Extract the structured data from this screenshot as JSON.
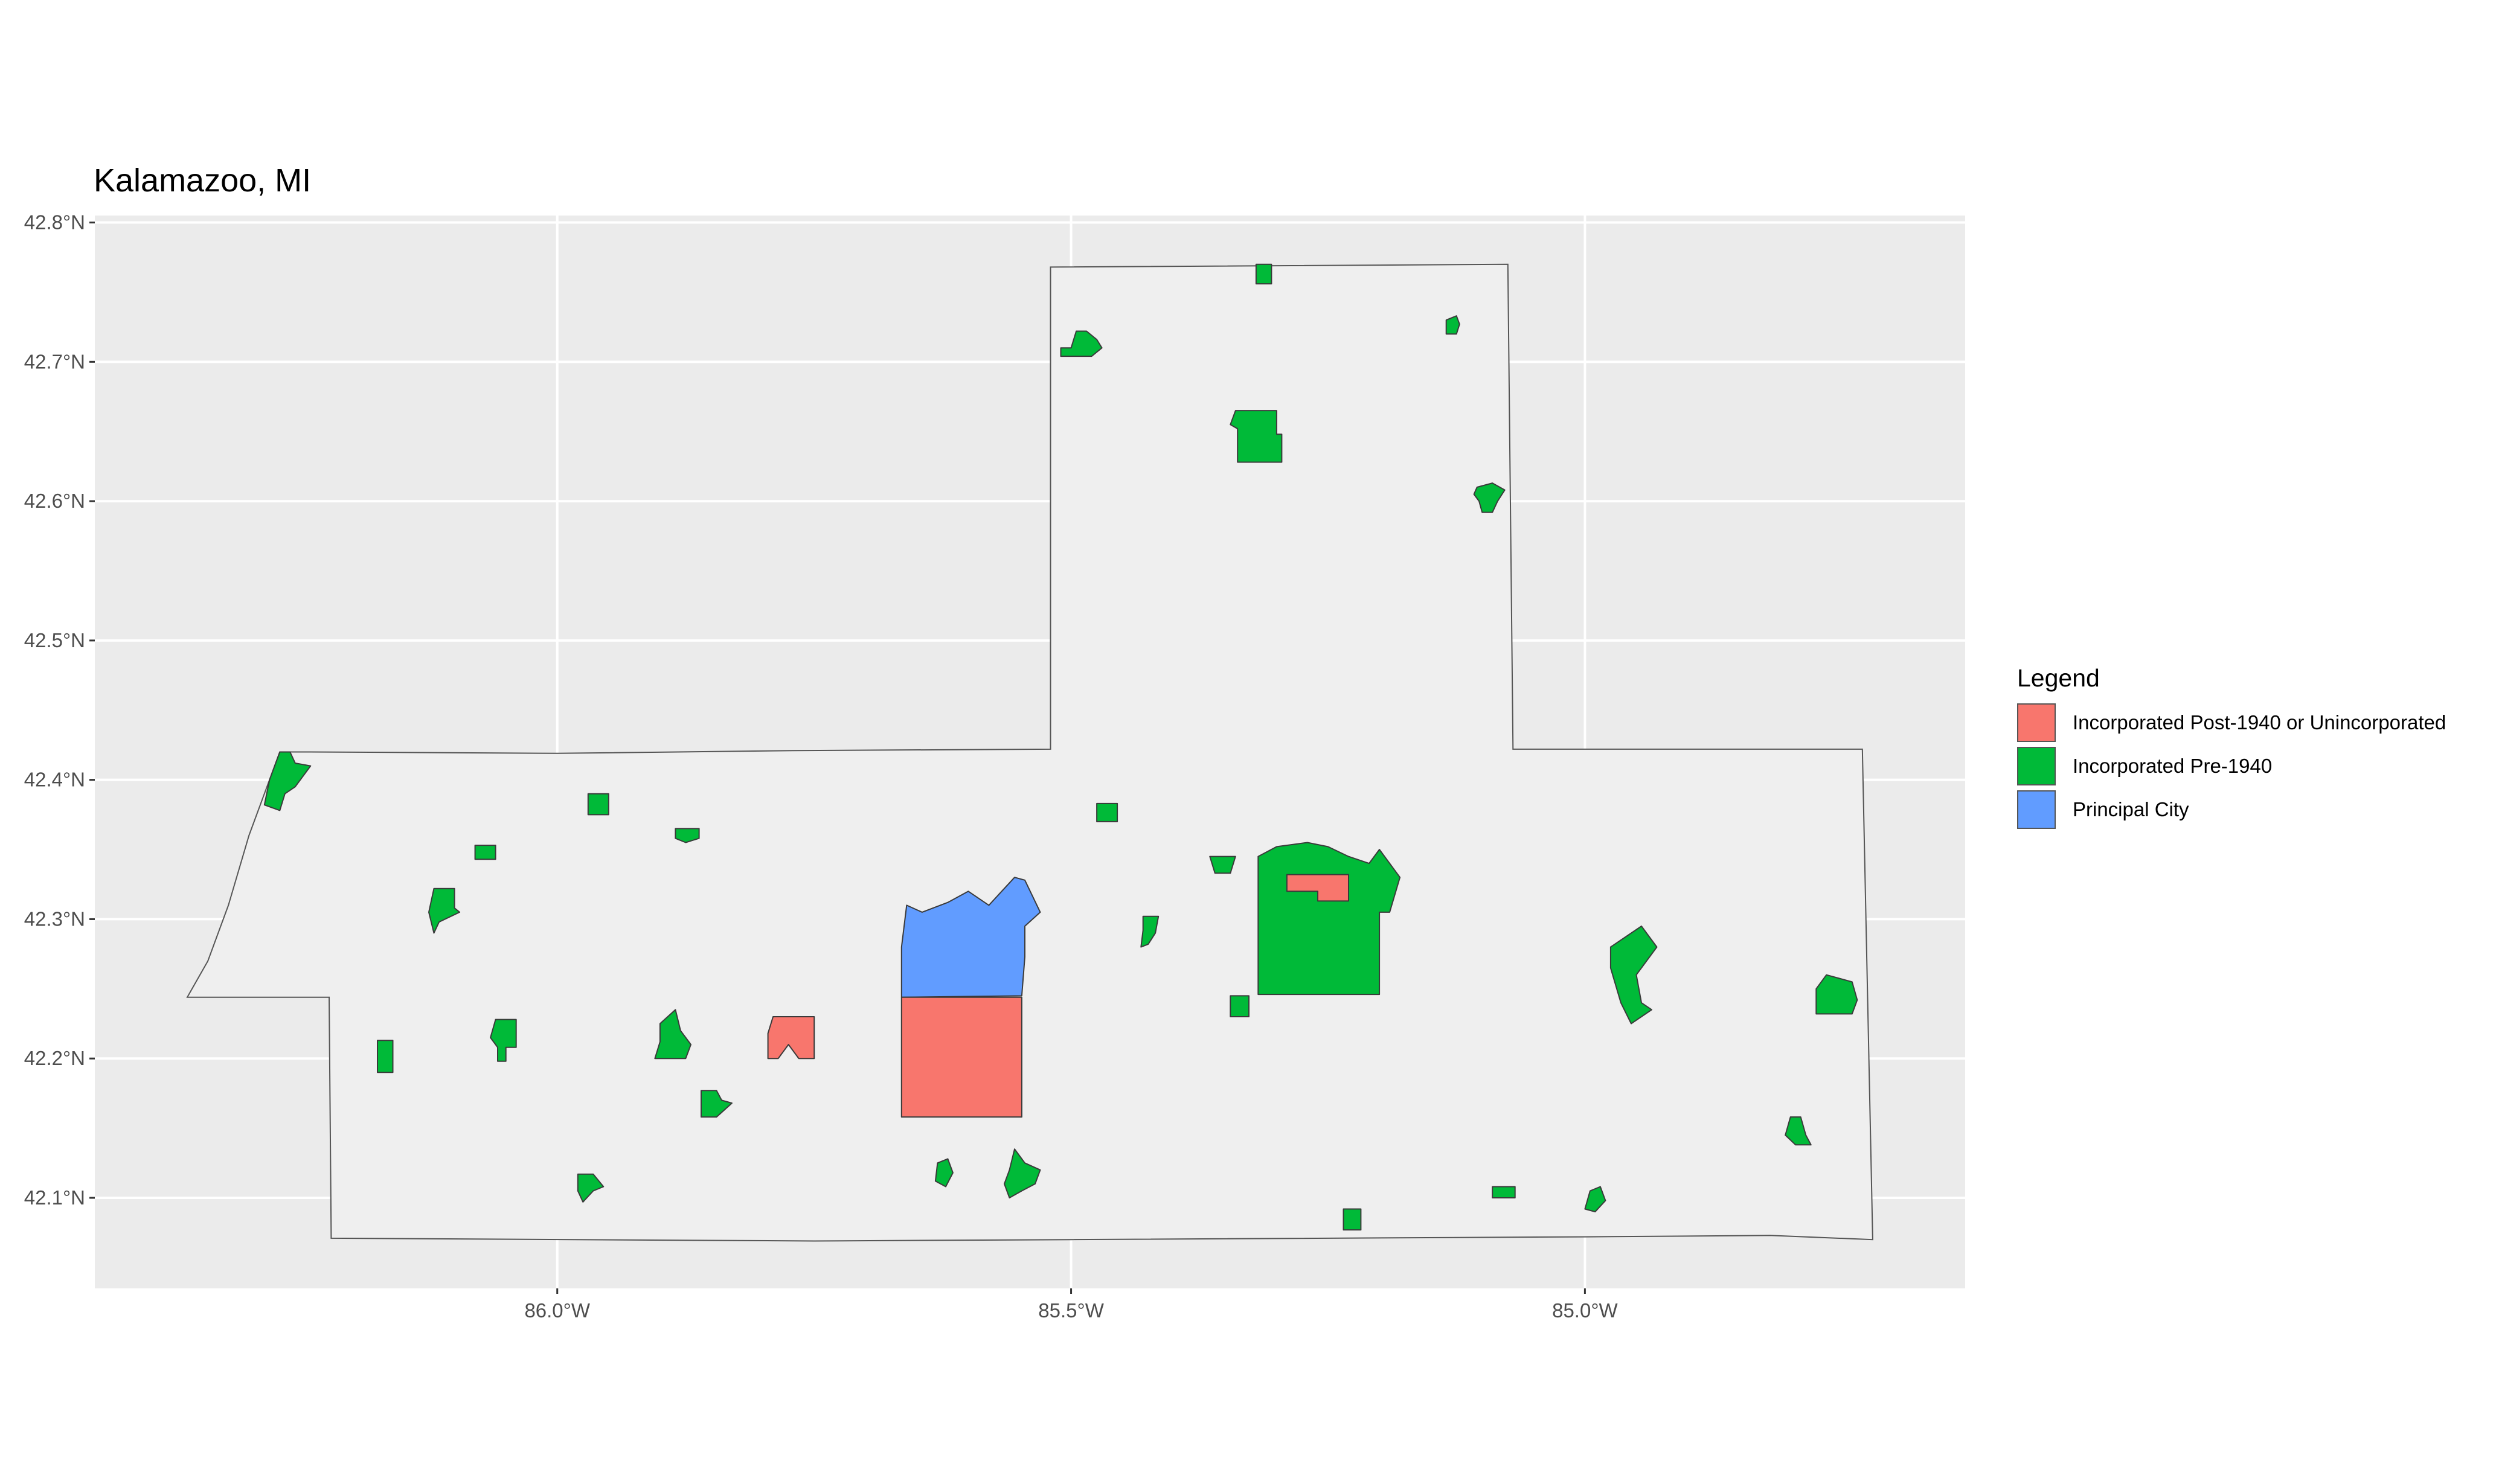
{
  "title": "Kalamazoo, MI",
  "legend": {
    "title": "Legend",
    "items": [
      {
        "label": "Incorporated Post-1940 or Unincorporated",
        "color": "#F8766D"
      },
      {
        "label": "Incorporated Pre-1940",
        "color": "#00BA38"
      },
      {
        "label": "Principal City",
        "color": "#619CFF"
      }
    ]
  },
  "colors": {
    "panel_background": "#EBEBEB",
    "county_fill": "#EFEFEF",
    "gridline": "#FFFFFF",
    "boundary": "#555555",
    "tick_text": "#4D4D4D"
  },
  "chart_data": {
    "type": "map",
    "title": "Kalamazoo, MI",
    "x_axis": {
      "ticks": [
        {
          "value": -86.0,
          "label": "86.0°W"
        },
        {
          "value": -85.5,
          "label": "85.5°W"
        },
        {
          "value": -85.0,
          "label": "85.0°W"
        }
      ],
      "range": [
        -86.45,
        -84.63
      ]
    },
    "y_axis": {
      "ticks": [
        {
          "value": 42.8,
          "label": "42.8°N"
        },
        {
          "value": 42.7,
          "label": "42.7°N"
        },
        {
          "value": 42.6,
          "label": "42.6°N"
        },
        {
          "value": 42.5,
          "label": "42.5°N"
        },
        {
          "value": 42.4,
          "label": "42.4°N"
        },
        {
          "value": 42.3,
          "label": "42.3°N"
        },
        {
          "value": 42.2,
          "label": "42.2°N"
        },
        {
          "value": 42.1,
          "label": "42.1°N"
        }
      ],
      "range": [
        42.035,
        42.805
      ]
    },
    "grid": true,
    "legend_position": "right",
    "boundary": [
      [
        -85.52,
        42.768
      ],
      [
        -85.075,
        42.77
      ],
      [
        -85.07,
        42.422
      ],
      [
        -84.73,
        42.422
      ],
      [
        -84.72,
        42.07
      ],
      [
        -84.82,
        42.073
      ],
      [
        -85.0,
        42.072
      ],
      [
        -85.5,
        42.07
      ],
      [
        -85.75,
        42.069
      ],
      [
        -86.22,
        42.071
      ],
      [
        -86.222,
        42.244
      ],
      [
        -86.36,
        42.244
      ],
      [
        -86.34,
        42.27
      ],
      [
        -86.32,
        42.31
      ],
      [
        -86.3,
        42.36
      ],
      [
        -86.27,
        42.42
      ],
      [
        -86.24,
        42.42
      ],
      [
        -86.0,
        42.419
      ],
      [
        -85.77,
        42.421
      ],
      [
        -85.52,
        42.422
      ],
      [
        -85.52,
        42.768
      ]
    ],
    "places": [
      {
        "category": "Principal City",
        "shape": [
          [
            -85.665,
            42.244
          ],
          [
            -85.665,
            42.28
          ],
          [
            -85.66,
            42.31
          ],
          [
            -85.645,
            42.305
          ],
          [
            -85.62,
            42.312
          ],
          [
            -85.6,
            42.32
          ],
          [
            -85.58,
            42.31
          ],
          [
            -85.555,
            42.33
          ],
          [
            -85.545,
            42.328
          ],
          [
            -85.53,
            42.305
          ],
          [
            -85.545,
            42.295
          ],
          [
            -85.545,
            42.273
          ],
          [
            -85.548,
            42.245
          ]
        ]
      },
      {
        "category": "Incorporated Post-1940 or Unincorporated",
        "shape": [
          [
            -85.665,
            42.244
          ],
          [
            -85.548,
            42.244
          ],
          [
            -85.548,
            42.158
          ],
          [
            -85.665,
            42.158
          ]
        ]
      },
      {
        "category": "Incorporated Post-1940 or Unincorporated",
        "shape": [
          [
            -85.79,
            42.23
          ],
          [
            -85.75,
            42.23
          ],
          [
            -85.75,
            42.2
          ],
          [
            -85.765,
            42.2
          ],
          [
            -85.775,
            42.21
          ],
          [
            -85.785,
            42.2
          ],
          [
            -85.795,
            42.2
          ],
          [
            -85.795,
            42.218
          ]
        ]
      },
      {
        "category": "Incorporated Pre-1940",
        "shape": [
          [
            -85.3,
            42.352
          ],
          [
            -85.27,
            42.355
          ],
          [
            -85.25,
            42.352
          ],
          [
            -85.23,
            42.345
          ],
          [
            -85.21,
            42.34
          ],
          [
            -85.2,
            42.35
          ],
          [
            -85.18,
            42.33
          ],
          [
            -85.19,
            42.305
          ],
          [
            -85.2,
            42.305
          ],
          [
            -85.2,
            42.246
          ],
          [
            -85.318,
            42.246
          ],
          [
            -85.318,
            42.345
          ]
        ]
      },
      {
        "category": "Incorporated Post-1940 or Unincorporated",
        "shape": [
          [
            -85.29,
            42.332
          ],
          [
            -85.23,
            42.332
          ],
          [
            -85.23,
            42.313
          ],
          [
            -85.26,
            42.313
          ],
          [
            -85.26,
            42.32
          ],
          [
            -85.29,
            42.32
          ]
        ]
      },
      {
        "category": "Incorporated Pre-1940",
        "shape": [
          [
            -85.34,
            42.665
          ],
          [
            -85.3,
            42.665
          ],
          [
            -85.3,
            42.648
          ],
          [
            -85.295,
            42.648
          ],
          [
            -85.295,
            42.628
          ],
          [
            -85.338,
            42.628
          ],
          [
            -85.338,
            42.652
          ],
          [
            -85.345,
            42.655
          ]
        ]
      },
      {
        "category": "Incorporated Pre-1940",
        "shape": [
          [
            -85.32,
            42.77
          ],
          [
            -85.305,
            42.77
          ],
          [
            -85.305,
            42.756
          ],
          [
            -85.32,
            42.756
          ]
        ]
      },
      {
        "category": "Incorporated Pre-1940",
        "shape": [
          [
            -85.51,
            42.71
          ],
          [
            -85.5,
            42.71
          ],
          [
            -85.495,
            42.722
          ],
          [
            -85.485,
            42.722
          ],
          [
            -85.475,
            42.716
          ],
          [
            -85.47,
            42.71
          ],
          [
            -85.48,
            42.704
          ],
          [
            -85.51,
            42.704
          ]
        ]
      },
      {
        "category": "Incorporated Pre-1940",
        "shape": [
          [
            -85.135,
            42.73
          ],
          [
            -85.125,
            42.733
          ],
          [
            -85.122,
            42.727
          ],
          [
            -85.125,
            42.72
          ],
          [
            -85.135,
            42.72
          ]
        ]
      },
      {
        "category": "Incorporated Pre-1940",
        "shape": [
          [
            -85.105,
            42.61
          ],
          [
            -85.09,
            42.613
          ],
          [
            -85.078,
            42.608
          ],
          [
            -85.085,
            42.6
          ],
          [
            -85.09,
            42.592
          ],
          [
            -85.1,
            42.592
          ],
          [
            -85.103,
            42.6
          ],
          [
            -85.108,
            42.605
          ]
        ]
      },
      {
        "category": "Incorporated Pre-1940",
        "shape": [
          [
            -86.28,
            42.4
          ],
          [
            -86.27,
            42.42
          ],
          [
            -86.26,
            42.42
          ],
          [
            -86.255,
            42.412
          ],
          [
            -86.24,
            42.41
          ],
          [
            -86.255,
            42.395
          ],
          [
            -86.265,
            42.39
          ],
          [
            -86.27,
            42.378
          ],
          [
            -86.285,
            42.382
          ]
        ]
      },
      {
        "category": "Incorporated Pre-1940",
        "shape": [
          [
            -85.97,
            42.39
          ],
          [
            -85.95,
            42.39
          ],
          [
            -85.95,
            42.375
          ],
          [
            -85.97,
            42.375
          ]
        ]
      },
      {
        "category": "Incorporated Pre-1940",
        "shape": [
          [
            -86.08,
            42.353
          ],
          [
            -86.06,
            42.353
          ],
          [
            -86.06,
            42.343
          ],
          [
            -86.08,
            42.343
          ]
        ]
      },
      {
        "category": "Incorporated Pre-1940",
        "shape": [
          [
            -85.885,
            42.365
          ],
          [
            -85.862,
            42.365
          ],
          [
            -85.862,
            42.358
          ],
          [
            -85.875,
            42.355
          ],
          [
            -85.885,
            42.358
          ]
        ]
      },
      {
        "category": "Incorporated Pre-1940",
        "shape": [
          [
            -86.12,
            42.322
          ],
          [
            -86.1,
            42.322
          ],
          [
            -86.1,
            42.308
          ],
          [
            -86.095,
            42.305
          ],
          [
            -86.115,
            42.298
          ],
          [
            -86.12,
            42.29
          ],
          [
            -86.125,
            42.305
          ]
        ]
      },
      {
        "category": "Incorporated Pre-1940",
        "shape": [
          [
            -86.06,
            42.228
          ],
          [
            -86.04,
            42.228
          ],
          [
            -86.04,
            42.208
          ],
          [
            -86.05,
            42.208
          ],
          [
            -86.05,
            42.198
          ],
          [
            -86.058,
            42.198
          ],
          [
            -86.058,
            42.208
          ],
          [
            -86.065,
            42.215
          ]
        ]
      },
      {
        "category": "Incorporated Pre-1940",
        "shape": [
          [
            -86.175,
            42.213
          ],
          [
            -86.16,
            42.213
          ],
          [
            -86.16,
            42.19
          ],
          [
            -86.175,
            42.19
          ]
        ]
      },
      {
        "category": "Incorporated Pre-1940",
        "shape": [
          [
            -85.9,
            42.225
          ],
          [
            -85.885,
            42.235
          ],
          [
            -85.88,
            42.22
          ],
          [
            -85.87,
            42.21
          ],
          [
            -85.875,
            42.2
          ],
          [
            -85.905,
            42.2
          ],
          [
            -85.9,
            42.212
          ]
        ]
      },
      {
        "category": "Incorporated Pre-1940",
        "shape": [
          [
            -85.86,
            42.177
          ],
          [
            -85.845,
            42.177
          ],
          [
            -85.84,
            42.17
          ],
          [
            -85.83,
            42.168
          ],
          [
            -85.845,
            42.158
          ],
          [
            -85.86,
            42.158
          ]
        ]
      },
      {
        "category": "Incorporated Pre-1940",
        "shape": [
          [
            -85.98,
            42.117
          ],
          [
            -85.965,
            42.117
          ],
          [
            -85.955,
            42.108
          ],
          [
            -85.965,
            42.105
          ],
          [
            -85.975,
            42.097
          ],
          [
            -85.98,
            42.105
          ]
        ]
      },
      {
        "category": "Incorporated Pre-1940",
        "shape": [
          [
            -85.63,
            42.125
          ],
          [
            -85.62,
            42.128
          ],
          [
            -85.615,
            42.118
          ],
          [
            -85.622,
            42.108
          ],
          [
            -85.632,
            42.112
          ]
        ]
      },
      {
        "category": "Incorporated Pre-1940",
        "shape": [
          [
            -85.555,
            42.135
          ],
          [
            -85.545,
            42.125
          ],
          [
            -85.53,
            42.12
          ],
          [
            -85.535,
            42.11
          ],
          [
            -85.548,
            42.105
          ],
          [
            -85.56,
            42.1
          ],
          [
            -85.565,
            42.11
          ],
          [
            -85.56,
            42.12
          ]
        ]
      },
      {
        "category": "Incorporated Pre-1940",
        "shape": [
          [
            -85.475,
            42.383
          ],
          [
            -85.455,
            42.383
          ],
          [
            -85.455,
            42.37
          ],
          [
            -85.475,
            42.37
          ]
        ]
      },
      {
        "category": "Incorporated Pre-1940",
        "shape": [
          [
            -85.43,
            42.302
          ],
          [
            -85.415,
            42.302
          ],
          [
            -85.418,
            42.29
          ],
          [
            -85.425,
            42.282
          ],
          [
            -85.432,
            42.28
          ],
          [
            -85.43,
            42.292
          ]
        ]
      },
      {
        "category": "Incorporated Pre-1940",
        "shape": [
          [
            -85.365,
            42.345
          ],
          [
            -85.34,
            42.345
          ],
          [
            -85.345,
            42.333
          ],
          [
            -85.36,
            42.333
          ]
        ]
      },
      {
        "category": "Incorporated Pre-1940",
        "shape": [
          [
            -85.345,
            42.245
          ],
          [
            -85.327,
            42.245
          ],
          [
            -85.327,
            42.23
          ],
          [
            -85.345,
            42.23
          ]
        ]
      },
      {
        "category": "Incorporated Pre-1940",
        "shape": [
          [
            -85.235,
            42.092
          ],
          [
            -85.218,
            42.092
          ],
          [
            -85.218,
            42.077
          ],
          [
            -85.235,
            42.077
          ]
        ]
      },
      {
        "category": "Incorporated Pre-1940",
        "shape": [
          [
            -85.09,
            42.108
          ],
          [
            -85.068,
            42.108
          ],
          [
            -85.068,
            42.1
          ],
          [
            -85.09,
            42.1
          ]
        ]
      },
      {
        "category": "Incorporated Pre-1940",
        "shape": [
          [
            -84.995,
            42.105
          ],
          [
            -84.985,
            42.108
          ],
          [
            -84.98,
            42.098
          ],
          [
            -84.99,
            42.09
          ],
          [
            -85.0,
            42.092
          ]
        ]
      },
      {
        "category": "Incorporated Pre-1940",
        "shape": [
          [
            -84.965,
            42.285
          ],
          [
            -84.945,
            42.295
          ],
          [
            -84.93,
            42.28
          ],
          [
            -84.95,
            42.26
          ],
          [
            -84.945,
            42.24
          ],
          [
            -84.935,
            42.235
          ],
          [
            -84.955,
            42.225
          ],
          [
            -84.965,
            42.24
          ],
          [
            -84.975,
            42.265
          ],
          [
            -84.975,
            42.28
          ]
        ]
      },
      {
        "category": "Incorporated Pre-1940",
        "shape": [
          [
            -84.765,
            42.26
          ],
          [
            -84.74,
            42.255
          ],
          [
            -84.735,
            42.242
          ],
          [
            -84.74,
            42.232
          ],
          [
            -84.775,
            42.232
          ],
          [
            -84.775,
            42.25
          ]
        ]
      },
      {
        "category": "Incorporated Pre-1940",
        "shape": [
          [
            -84.8,
            42.158
          ],
          [
            -84.79,
            42.158
          ],
          [
            -84.785,
            42.145
          ],
          [
            -84.78,
            42.138
          ],
          [
            -84.795,
            42.138
          ],
          [
            -84.805,
            42.145
          ]
        ]
      }
    ]
  }
}
